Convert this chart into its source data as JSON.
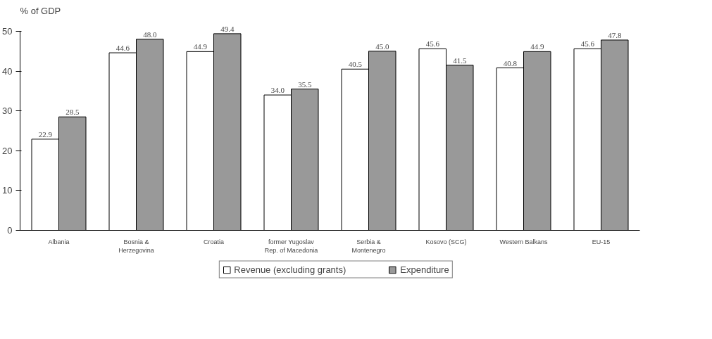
{
  "chart_data": {
    "type": "bar",
    "ylabel": "% of GDP",
    "categories": [
      "Albania",
      "Bosnia &\nHerzegovina",
      "Croatia",
      "former Yugoslav\nRep. of Macedonia",
      "Serbia &\nMontenegro",
      "Kosovo (SCG)",
      "Western Balkans",
      "EU-15"
    ],
    "series": [
      {
        "name": "Revenue (excluding grants)",
        "color": "#ffffff",
        "values": [
          22.9,
          44.6,
          44.9,
          34.0,
          40.5,
          45.6,
          40.8,
          45.6
        ],
        "value_labels": [
          "22.9",
          "44.6",
          "44.9",
          "34.0",
          "40.5",
          "45.6",
          "40.8",
          "45.6"
        ]
      },
      {
        "name": "Expenditure",
        "color": "#999999",
        "values": [
          28.5,
          48.0,
          49.4,
          35.5,
          45.0,
          41.5,
          44.9,
          47.8
        ],
        "value_labels": [
          "28.5",
          "48.0",
          "49.4",
          "35.5",
          "45.0",
          "41.5",
          "44.9",
          "47.8"
        ]
      }
    ],
    "ylim": [
      0,
      50
    ],
    "yticks": [
      0,
      10,
      20,
      30,
      40,
      50
    ],
    "grid": false,
    "legend": "bottom"
  }
}
